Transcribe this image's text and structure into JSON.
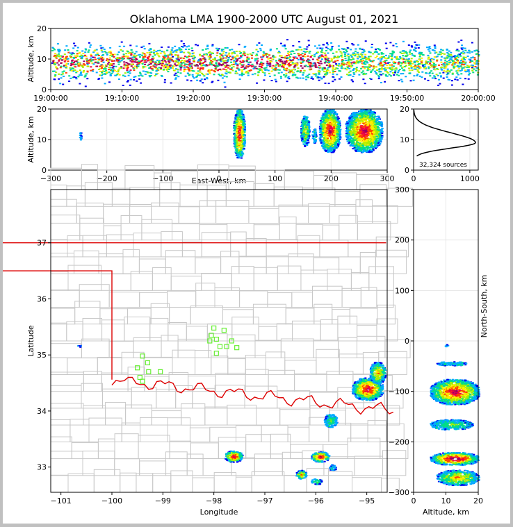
{
  "title": "Oklahoma LMA 1900-2000 UTC August 01, 2021",
  "colors": {
    "border": "#dd0000",
    "counties": "#c8c8c8",
    "stations": "#66ee33",
    "density": [
      "#0000ee",
      "#00aaff",
      "#00dd88",
      "#aaee00",
      "#ffee00",
      "#ff4400",
      "#ee0044",
      "#990066",
      "#eeeeee"
    ]
  },
  "chart_data": [
    {
      "type": "heatmap",
      "name": "time-altitude",
      "xlabel": "",
      "ylabel": "Altitude, km",
      "x_ticks": [
        "19:00:00",
        "19:10:00",
        "19:20:00",
        "19:30:00",
        "19:40:00",
        "19:50:00",
        "20:00:00"
      ],
      "xlim": [
        "19:00:00",
        "20:00:00"
      ],
      "ylim": [
        0,
        20
      ],
      "y_ticks": [
        0,
        10,
        20
      ],
      "band_center_km": 9,
      "band_half_width_km": 4
    },
    {
      "type": "heatmap",
      "name": "east-west-altitude",
      "xlabel": "East-West, km",
      "ylabel": "Altitude, km",
      "xlim": [
        -300,
        300
      ],
      "ylim": [
        0,
        20
      ],
      "x_ticks": [
        -300,
        -200,
        -100,
        0,
        100,
        200,
        300
      ],
      "y_ticks": [
        0,
        10,
        20
      ],
      "cells": [
        {
          "x": [
            -250,
            -246
          ],
          "y": [
            9.5,
            12.5
          ],
          "level": 0
        },
        {
          "x": [
            25,
            45
          ],
          "y": [
            4,
            20
          ],
          "level": 6
        },
        {
          "x": [
            145,
            160
          ],
          "y": [
            8,
            18
          ],
          "level": 3
        },
        {
          "x": [
            165,
            172
          ],
          "y": [
            9,
            14
          ],
          "level": 1
        },
        {
          "x": [
            178,
            215
          ],
          "y": [
            6,
            20
          ],
          "level": 6
        },
        {
          "x": [
            225,
            290
          ],
          "y": [
            6,
            20
          ],
          "level": 6
        }
      ]
    },
    {
      "type": "line",
      "name": "altitude-histogram",
      "xlim": [
        0,
        1150
      ],
      "ylim": [
        0,
        20
      ],
      "x_ticks": [
        0,
        1000
      ],
      "y_ticks": [
        0,
        10,
        20
      ],
      "annotation": "32,324 sources",
      "peak_altitude_km": 9,
      "peak_count": 1100
    },
    {
      "type": "heatmap",
      "name": "plan-view",
      "xlabel": "Longitude",
      "ylabel": "Latitude",
      "xlim": [
        -101.2,
        -94.6
      ],
      "ylim": [
        32.55,
        37.95
      ],
      "x_ticks": [
        -101,
        -100,
        -99,
        -98,
        -97,
        -96,
        -95
      ],
      "y_ticks": [
        33,
        34,
        35,
        36,
        37
      ],
      "cells": [
        {
          "lon": [
            -100.7,
            -100.62
          ],
          "lat": [
            35.15,
            35.19
          ],
          "level": 0
        },
        {
          "lon": [
            -95.3,
            -94.7
          ],
          "lat": [
            34.2,
            34.6
          ],
          "level": 6
        },
        {
          "lon": [
            -94.95,
            -94.65
          ],
          "lat": [
            34.5,
            34.88
          ],
          "level": 4
        },
        {
          "lon": [
            -95.85,
            -95.6
          ],
          "lat": [
            33.72,
            33.95
          ],
          "level": 2
        },
        {
          "lon": [
            -97.8,
            -97.45
          ],
          "lat": [
            33.1,
            33.3
          ],
          "level": 6
        },
        {
          "lon": [
            -96.1,
            -95.75
          ],
          "lat": [
            33.1,
            33.28
          ],
          "level": 6
        },
        {
          "lon": [
            -96.4,
            -96.2
          ],
          "lat": [
            32.8,
            32.95
          ],
          "level": 4
        },
        {
          "lon": [
            -96.1,
            -95.9
          ],
          "lat": [
            32.7,
            32.8
          ],
          "level": 2
        },
        {
          "lon": [
            -95.75,
            -95.62
          ],
          "lat": [
            32.95,
            33.05
          ],
          "level": 1
        }
      ],
      "stations": [
        [
          -98.0,
          35.48
        ],
        [
          -97.8,
          35.44
        ],
        [
          -98.05,
          35.35
        ],
        [
          -97.95,
          35.28
        ],
        [
          -98.08,
          35.25
        ],
        [
          -97.65,
          35.25
        ],
        [
          -97.88,
          35.15
        ],
        [
          -97.75,
          35.15
        ],
        [
          -97.55,
          35.13
        ],
        [
          -97.95,
          35.03
        ],
        [
          -99.4,
          34.98
        ],
        [
          -99.3,
          34.86
        ],
        [
          -99.5,
          34.77
        ],
        [
          -99.28,
          34.7
        ],
        [
          -99.05,
          34.7
        ],
        [
          -99.45,
          34.6
        ],
        [
          -99.4,
          34.53
        ]
      ]
    },
    {
      "type": "heatmap",
      "name": "altitude-north-south",
      "ylabel": "North-South, km",
      "xlabel": "Altitude, km",
      "xlim": [
        0,
        20
      ],
      "ylim": [
        -300,
        300
      ],
      "x_ticks": [
        0,
        10,
        20
      ],
      "y_ticks": [
        -300,
        -200,
        -100,
        0,
        100,
        200,
        300
      ],
      "cells": [
        {
          "x": [
            9.5,
            10.5
          ],
          "y": [
            -10,
            -5
          ],
          "level": 0
        },
        {
          "x": [
            7,
            16
          ],
          "y": [
            -48,
            -40
          ],
          "level": 1
        },
        {
          "x": [
            5,
            20
          ],
          "y": [
            -125,
            -75
          ],
          "level": 6
        },
        {
          "x": [
            5,
            18
          ],
          "y": [
            -175,
            -155
          ],
          "level": 2
        },
        {
          "x": [
            5,
            20
          ],
          "y": [
            -245,
            -220
          ],
          "level": 7
        },
        {
          "x": [
            7,
            20
          ],
          "y": [
            -285,
            -255
          ],
          "level": 4
        }
      ]
    }
  ]
}
